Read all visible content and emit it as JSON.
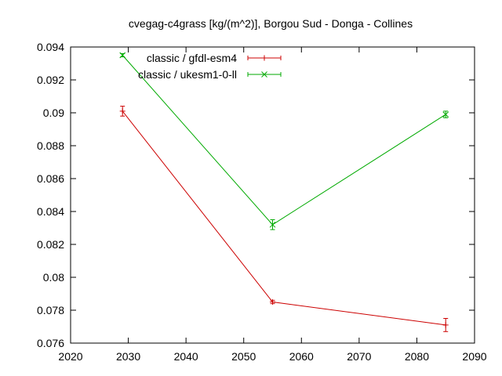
{
  "chart_data": {
    "type": "line",
    "title": "cvegag-c4grass [kg/(m^2)], Borgou Sud - Donga - Collines",
    "xlabel": "",
    "ylabel": "",
    "xlim": [
      2020,
      2090
    ],
    "ylim": [
      0.076,
      0.094
    ],
    "xticks": [
      2020,
      2030,
      2040,
      2050,
      2060,
      2070,
      2080,
      2090
    ],
    "yticks": [
      0.076,
      0.078,
      0.08,
      0.082,
      0.084,
      0.086,
      0.088,
      0.09,
      0.092,
      0.094
    ],
    "ytick_labels": [
      "0.076",
      "0.078",
      "0.08",
      "0.082",
      "0.084",
      "0.086",
      "0.088",
      "0.09",
      "0.092",
      "0.094"
    ],
    "grid": false,
    "legend_position": "top-left",
    "series": [
      {
        "name": "classic / gfdl-esm4",
        "color": "#cc0000",
        "marker": "plus",
        "x": [
          2029,
          2055,
          2085
        ],
        "y": [
          0.0901,
          0.0785,
          0.0771
        ],
        "err": [
          0.0003,
          0.0001,
          0.0004
        ]
      },
      {
        "name": "classic / ukesm1-0-ll",
        "color": "#00aa00",
        "marker": "cross",
        "x": [
          2029,
          2055,
          2085
        ],
        "y": [
          0.0935,
          0.0832,
          0.0899
        ],
        "err": [
          0.0001,
          0.0003,
          0.0002
        ]
      }
    ]
  }
}
